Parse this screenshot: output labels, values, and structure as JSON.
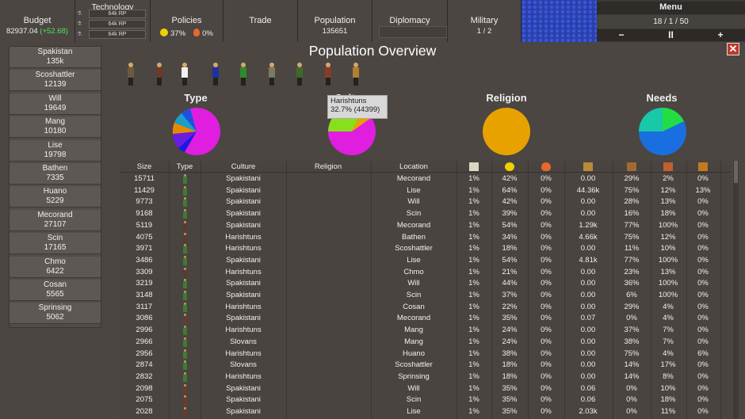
{
  "topbar": {
    "budget": {
      "label": "Budget",
      "value": "82937.04",
      "delta": "(+52.68)"
    },
    "technology": {
      "label": "Technology",
      "rows": [
        "64k RP",
        "64k RP",
        "64k RP"
      ]
    },
    "policies": {
      "label": "Policies",
      "happiness": "37%",
      "unrest": "0%"
    },
    "trade": {
      "label": "Trade"
    },
    "population": {
      "label": "Population",
      "value": "135651"
    },
    "diplomacy": {
      "label": "Diplomacy"
    },
    "military": {
      "label": "Military",
      "value": "1 / 2"
    }
  },
  "menu": {
    "title": "Menu",
    "date": "18 / 1 / 50",
    "minus": "−",
    "pause": "II",
    "plus": "+"
  },
  "sidebar": {
    "cities": [
      {
        "name": "Spakistan",
        "pop": "135k"
      },
      {
        "name": "Scoshattler",
        "pop": "12139"
      },
      {
        "name": "Will",
        "pop": "19649"
      },
      {
        "name": "Mang",
        "pop": "10180"
      },
      {
        "name": "Lise",
        "pop": "19798"
      },
      {
        "name": "Bathen",
        "pop": "7335"
      },
      {
        "name": "Huano",
        "pop": "5229"
      },
      {
        "name": "Mecorand",
        "pop": "27107"
      },
      {
        "name": "Scin",
        "pop": "17165"
      },
      {
        "name": "Chmo",
        "pop": "6422"
      },
      {
        "name": "Cosan",
        "pop": "5565"
      },
      {
        "name": "Sprinsing",
        "pop": "5062"
      }
    ]
  },
  "panel": {
    "title": "Population Overview",
    "close": "✕",
    "pies": {
      "type": "Type",
      "culture": "Culture",
      "religion": "Religion",
      "needs": "Needs"
    },
    "tooltip": {
      "line1": "Harishtuns",
      "line2": "32.7% (44399)"
    }
  },
  "colors": {
    "magenta": "#e01ee0",
    "orange": "#e8a200",
    "blue": "#1a6fe0",
    "green": "#22dd44",
    "lime": "#88e01c",
    "cyan": "#18c8c8",
    "purple": "#6a1ee0"
  },
  "table": {
    "headers": [
      "Size",
      "Type",
      "Culture",
      "Religion",
      "Location"
    ],
    "icon_headers": [
      "literacy-icon",
      "happiness-icon",
      "unrest-icon",
      "wealth-icon",
      "tools-icon",
      "weapons-icon",
      "luxury-icon"
    ],
    "rows": [
      [
        "15711",
        "Spakistani",
        "",
        "Mecorand",
        "1%",
        "42%",
        "0%",
        "0.00",
        "29%",
        "2%",
        "0%"
      ],
      [
        "11429",
        "Spakistani",
        "",
        "Lise",
        "1%",
        "64%",
        "0%",
        "44.36k",
        "75%",
        "12%",
        "13%"
      ],
      [
        "9773",
        "Spakistani",
        "",
        "Will",
        "1%",
        "42%",
        "0%",
        "0.00",
        "28%",
        "13%",
        "0%"
      ],
      [
        "9168",
        "Spakistani",
        "",
        "Scin",
        "1%",
        "39%",
        "0%",
        "0.00",
        "16%",
        "18%",
        "0%"
      ],
      [
        "5119",
        "Spakistani",
        "",
        "Mecorand",
        "1%",
        "54%",
        "0%",
        "1.29k",
        "77%",
        "100%",
        "0%"
      ],
      [
        "4075",
        "Harishtuns",
        "",
        "Bathen",
        "1%",
        "34%",
        "0%",
        "4.66k",
        "75%",
        "12%",
        "0%"
      ],
      [
        "3971",
        "Harishtuns",
        "",
        "Scoshattler",
        "1%",
        "18%",
        "0%",
        "0.00",
        "11%",
        "10%",
        "0%"
      ],
      [
        "3486",
        "Spakistani",
        "",
        "Lise",
        "1%",
        "54%",
        "0%",
        "4.81k",
        "77%",
        "100%",
        "0%"
      ],
      [
        "3309",
        "Harishtuns",
        "",
        "Chmo",
        "1%",
        "21%",
        "0%",
        "0.00",
        "23%",
        "13%",
        "0%"
      ],
      [
        "3219",
        "Spakistani",
        "",
        "Will",
        "1%",
        "44%",
        "0%",
        "0.00",
        "36%",
        "100%",
        "0%"
      ],
      [
        "3148",
        "Spakistani",
        "",
        "Scin",
        "1%",
        "37%",
        "0%",
        "0.00",
        "6%",
        "100%",
        "0%"
      ],
      [
        "3117",
        "Harishtuns",
        "",
        "Cosan",
        "1%",
        "22%",
        "0%",
        "0.00",
        "29%",
        "4%",
        "0%"
      ],
      [
        "3086",
        "Spakistani",
        "",
        "Mecorand",
        "1%",
        "35%",
        "0%",
        "0.07",
        "0%",
        "4%",
        "0%"
      ],
      [
        "2996",
        "Harishtuns",
        "",
        "Mang",
        "1%",
        "24%",
        "0%",
        "0.00",
        "37%",
        "7%",
        "0%"
      ],
      [
        "2966",
        "Slovans",
        "",
        "Mang",
        "1%",
        "24%",
        "0%",
        "0.00",
        "38%",
        "7%",
        "0%"
      ],
      [
        "2956",
        "Harishtuns",
        "",
        "Huano",
        "1%",
        "38%",
        "0%",
        "0.00",
        "75%",
        "4%",
        "6%"
      ],
      [
        "2874",
        "Slovans",
        "",
        "Scoshattler",
        "1%",
        "18%",
        "0%",
        "0.00",
        "14%",
        "17%",
        "0%"
      ],
      [
        "2832",
        "Harishtuns",
        "",
        "Sprinsing",
        "1%",
        "18%",
        "0%",
        "0.00",
        "14%",
        "8%",
        "0%"
      ],
      [
        "2098",
        "Spakistani",
        "",
        "Will",
        "1%",
        "35%",
        "0%",
        "0.06",
        "0%",
        "10%",
        "0%"
      ],
      [
        "2075",
        "Spakistani",
        "",
        "Scin",
        "1%",
        "35%",
        "0%",
        "0.06",
        "0%",
        "18%",
        "0%"
      ],
      [
        "2028",
        "Spakistani",
        "",
        "Lise",
        "1%",
        "35%",
        "0%",
        "2.03k",
        "0%",
        "11%",
        "0%"
      ]
    ]
  }
}
